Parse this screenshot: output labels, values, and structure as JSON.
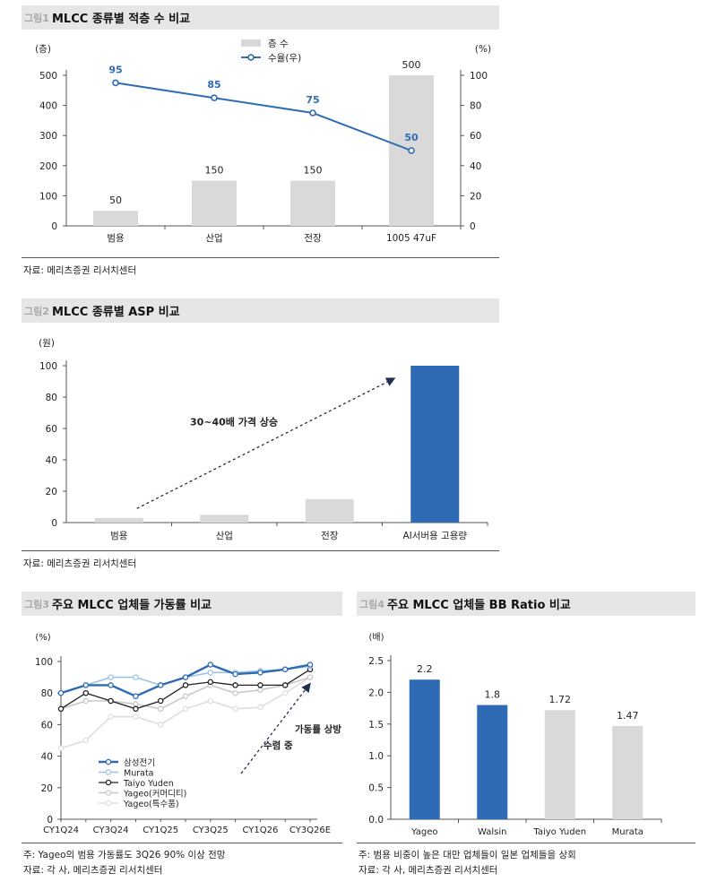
{
  "charts": [
    {
      "fig_num": "그림1",
      "title": "MLCC 종류별 적층 수 비교",
      "source": "자료: 메리츠증권 리서치센터",
      "legend": [
        "층 수",
        "수율(우)"
      ]
    },
    {
      "fig_num": "그림2",
      "title": "MLCC 종류별 ASP 비교",
      "source": "자료: 메리츠증권 리서치센터",
      "annotation": "30~40배 가격 상승"
    },
    {
      "fig_num": "그림3",
      "title": "주요 MLCC 업체들 가동률 비교",
      "note": "주: Yageo의 범용 가동률도 3Q26 90% 이상 전망",
      "source": "자료: 각 사, 메리츠증권 리서치센터",
      "annotation_line1": "가동률 상방",
      "annotation_line2": "수렴 중"
    },
    {
      "fig_num": "그림4",
      "title": "주요 MLCC 업체들 BB Ratio 비교",
      "note": "주: 범용 비중이 높은 대만 업체들이 일본 업체들을 상회",
      "source": "자료: 각 사, 메리츠증권 리서치센터"
    }
  ],
  "chart_data": [
    {
      "type": "bar",
      "categories": [
        "범용",
        "산업",
        "전장",
        "1005 47uF"
      ],
      "ylabel_left": "(층)",
      "ylabel_right": "(%)",
      "ylim": [
        0,
        500
      ],
      "yticks": [
        0,
        100,
        200,
        300,
        400,
        500
      ],
      "y2lim": [
        0,
        100
      ],
      "y2ticks": [
        0,
        20,
        40,
        60,
        80,
        100
      ],
      "series": [
        {
          "name": "층 수",
          "type": "bar",
          "axis": "left",
          "values": [
            50,
            150,
            150,
            500
          ],
          "color": "#d9d9d9"
        },
        {
          "name": "수율(우)",
          "type": "line",
          "axis": "right",
          "values": [
            95,
            85,
            75,
            50
          ],
          "color": "#2e6bb4"
        }
      ],
      "grid": false,
      "legend_position": "top-right"
    },
    {
      "type": "bar",
      "categories": [
        "범용",
        "산업",
        "전장",
        "AI서버용 고용량"
      ],
      "ylabel": "(원)",
      "ylim": [
        0,
        100
      ],
      "yticks": [
        0,
        20,
        40,
        60,
        80,
        100
      ],
      "values": [
        3,
        5,
        15,
        100
      ],
      "colors": [
        "#d9d9d9",
        "#d9d9d9",
        "#d9d9d9",
        "#2e6bb4"
      ],
      "grid": false
    },
    {
      "type": "line",
      "categories": [
        "CY1Q24",
        "CY2Q24",
        "CY3Q24",
        "CY4Q24",
        "CY1Q25",
        "CY2Q25",
        "CY3Q25",
        "CY4Q25",
        "CY1Q26",
        "CY2Q26",
        "CY3Q26E"
      ],
      "tick_labels": [
        "CY1Q24",
        "CY3Q24",
        "CY1Q25",
        "CY3Q25",
        "CY1Q26",
        "CY3Q26E"
      ],
      "ylabel": "(%)",
      "ylim": [
        0,
        100
      ],
      "yticks": [
        0,
        20,
        40,
        60,
        80,
        100
      ],
      "series": [
        {
          "name": "삼성전기",
          "values": [
            80,
            85,
            85,
            78,
            85,
            90,
            98,
            92,
            93,
            95,
            98
          ],
          "color": "#2e6bb4"
        },
        {
          "name": "Murata",
          "values": [
            80,
            85,
            90,
            90,
            85,
            90,
            93,
            93,
            94,
            95,
            97
          ],
          "color": "#9dc3e6"
        },
        {
          "name": "Taiyo Yuden",
          "values": [
            70,
            80,
            75,
            70,
            75,
            85,
            87,
            85,
            85,
            85,
            95
          ],
          "color": "#222222"
        },
        {
          "name": "Yageo(커머디티)",
          "values": [
            70,
            75,
            75,
            73,
            70,
            78,
            85,
            80,
            82,
            85,
            90
          ],
          "color": "#c8c8c8"
        },
        {
          "name": "Yageo(특수품)",
          "values": [
            45,
            50,
            65,
            65,
            60,
            70,
            75,
            70,
            71,
            80,
            90
          ],
          "color": "#dedede"
        }
      ],
      "grid": false,
      "legend_position": "bottom-left"
    },
    {
      "type": "bar",
      "categories": [
        "Yageo",
        "Walsin",
        "Taiyo Yuden",
        "Murata"
      ],
      "ylabel": "(배)",
      "ylim": [
        0,
        2.5
      ],
      "yticks": [
        "0.0",
        "0.5",
        "1.0",
        "1.5",
        "2.0",
        "2.5"
      ],
      "values": [
        2.2,
        1.8,
        1.72,
        1.47
      ],
      "value_labels": [
        "2.2",
        "1.8",
        "1.72",
        "1.47"
      ],
      "colors": [
        "#2e6bb4",
        "#2e6bb4",
        "#d9d9d9",
        "#d9d9d9"
      ],
      "grid": false
    }
  ]
}
